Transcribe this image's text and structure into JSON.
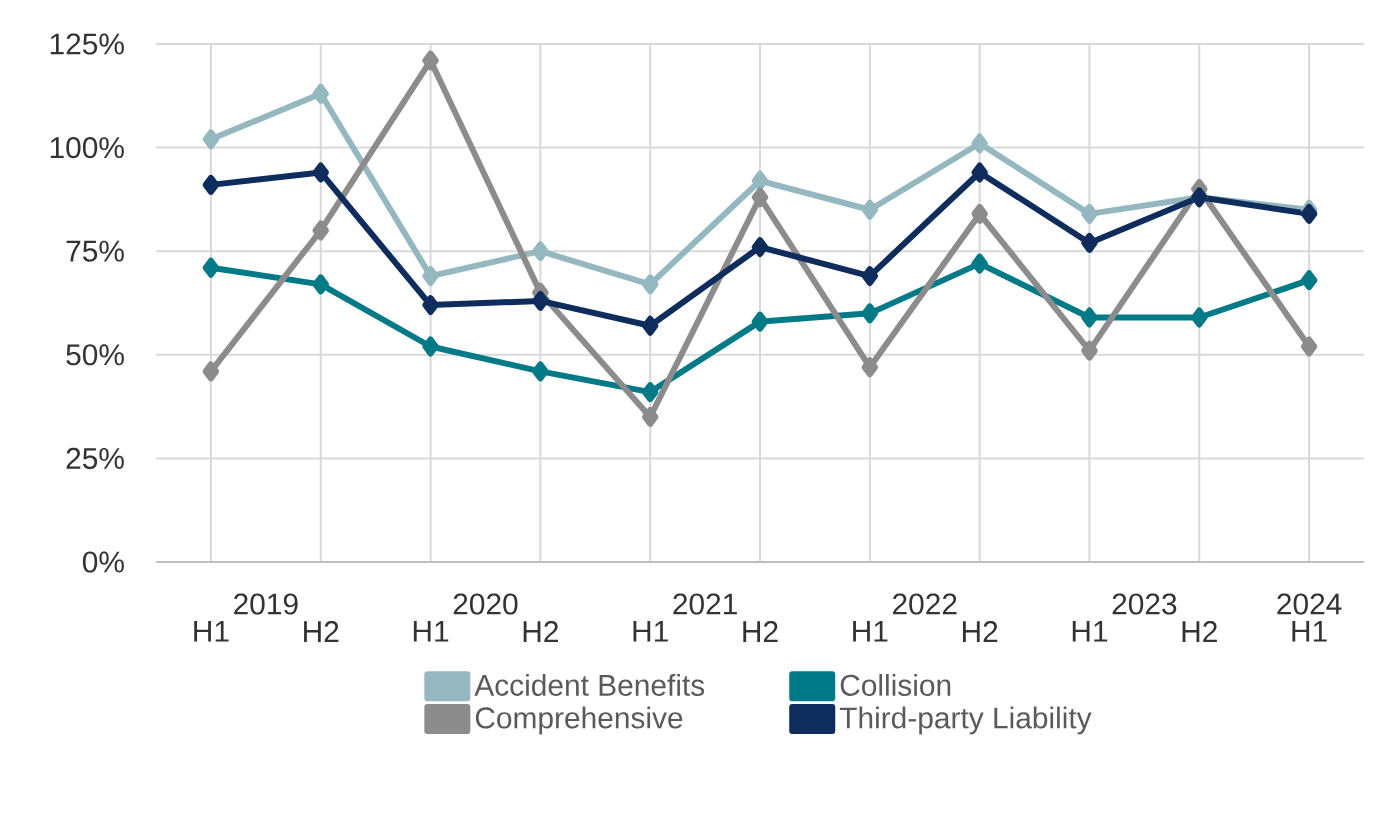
{
  "chart_data": {
    "type": "line",
    "categories": [
      "H1",
      "H2",
      "H1",
      "H2",
      "H1",
      "H2",
      "H1",
      "H2",
      "H1",
      "H2",
      "H1"
    ],
    "annotations": [
      "2019",
      "2020",
      "2021",
      "2022",
      "2023",
      "2024"
    ],
    "series": [
      {
        "name": "Accident Benefits",
        "color": "#95b8c0",
        "values": [
          102,
          113,
          69,
          75,
          67,
          92,
          85,
          101,
          84,
          88,
          85
        ]
      },
      {
        "name": "Collision",
        "color": "#007a87",
        "values": [
          71,
          67,
          52,
          46,
          41,
          58,
          60,
          72,
          59,
          59,
          68
        ]
      },
      {
        "name": "Comprehensive",
        "color": "#8c8c8c",
        "values": [
          46,
          80,
          121,
          65,
          35,
          88,
          47,
          84,
          51,
          90,
          52
        ]
      },
      {
        "name": "Third-party Liability",
        "color": "#0f2d5c",
        "values": [
          91,
          94,
          62,
          63,
          57,
          76,
          69,
          94,
          77,
          88,
          84
        ]
      }
    ],
    "ylim": [
      0,
      125
    ],
    "yticks": [
      {
        "value": 0,
        "label": "0%"
      },
      {
        "value": 25,
        "label": "25%"
      },
      {
        "value": 50,
        "label": "50%"
      },
      {
        "value": 75,
        "label": "75%"
      },
      {
        "value": 100,
        "label": "100%"
      },
      {
        "value": 125,
        "label": "125%"
      }
    ],
    "grid": true,
    "legend": "bottom",
    "marker": "diamond",
    "line_style": "solid"
  }
}
